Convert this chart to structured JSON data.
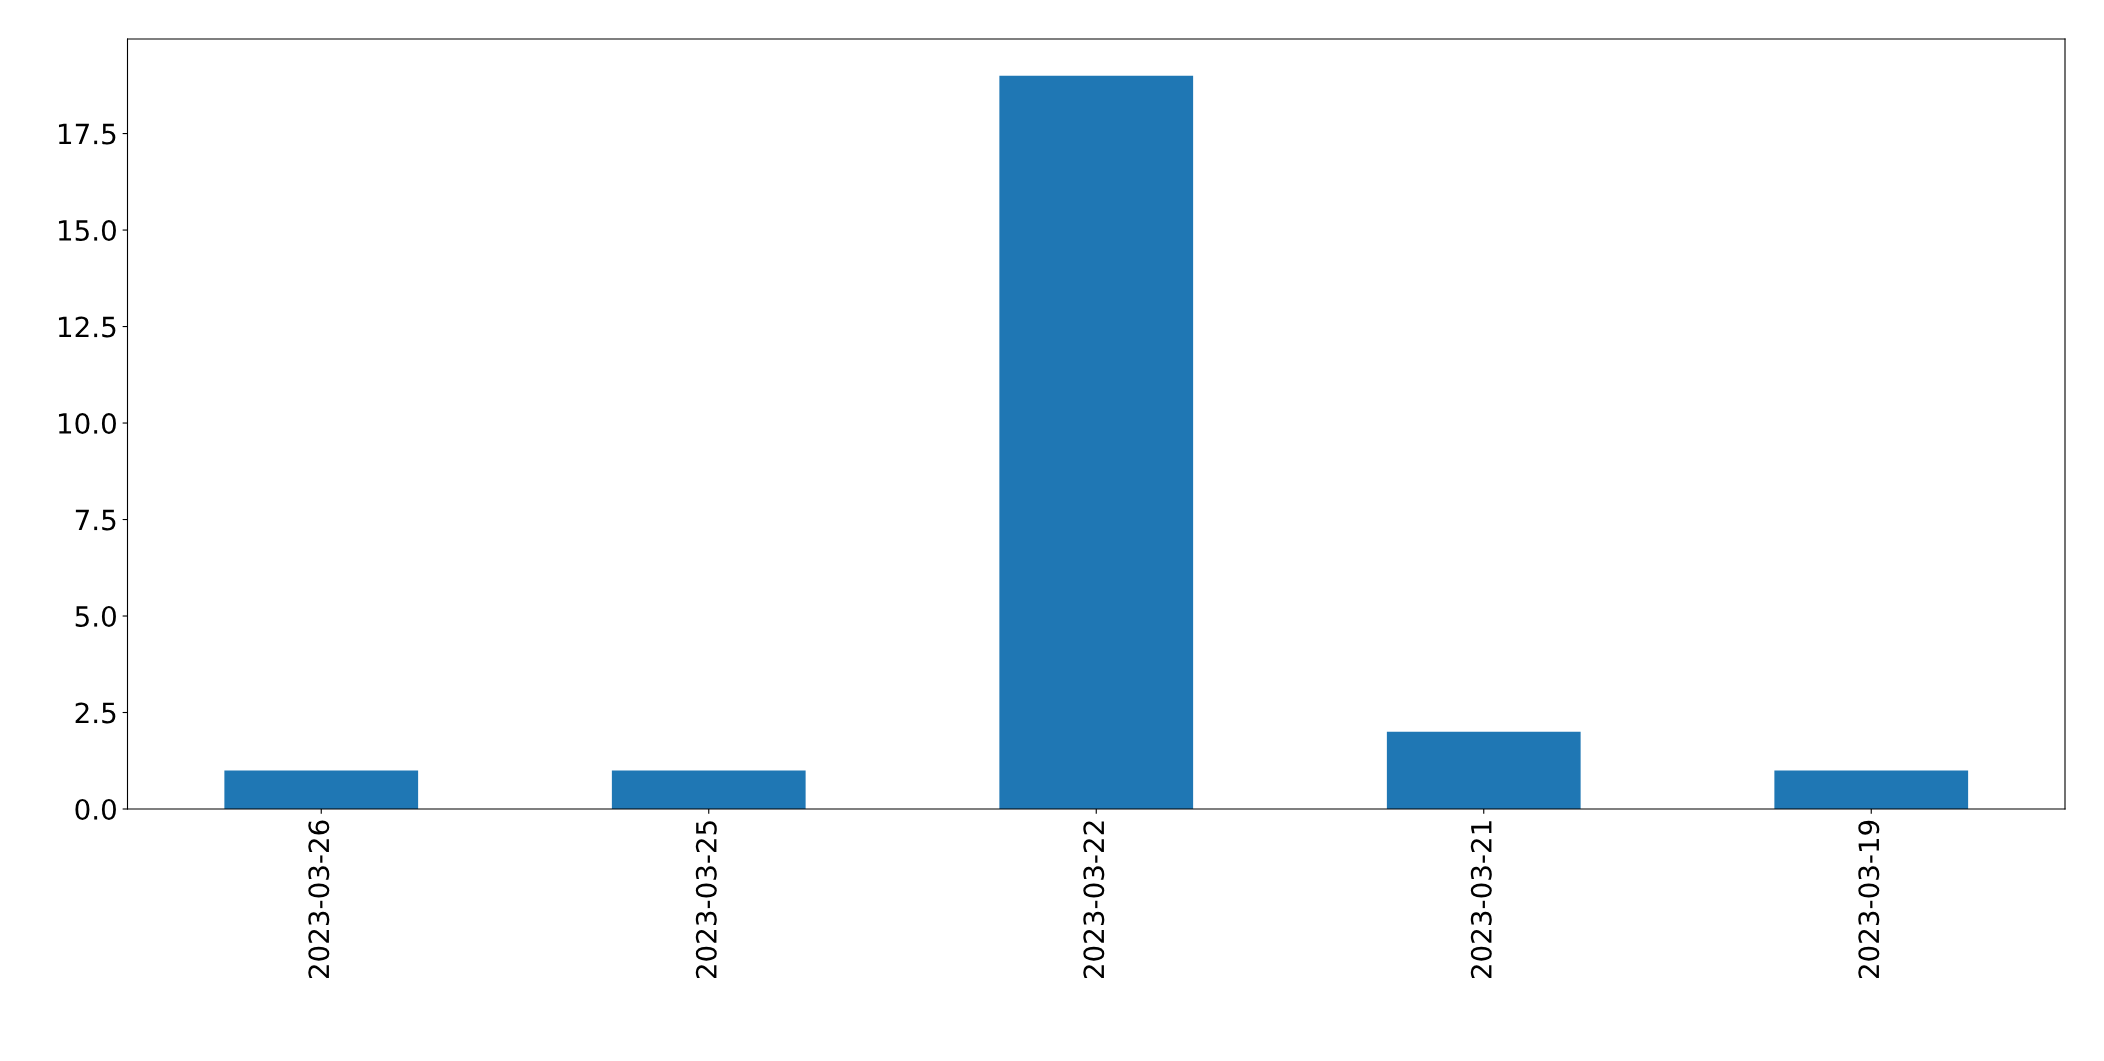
{
  "chart_data": {
    "type": "bar",
    "categories": [
      "2023-03-26",
      "2023-03-25",
      "2023-03-22",
      "2023-03-21",
      "2023-03-19"
    ],
    "values": [
      1,
      1,
      19,
      2,
      1
    ],
    "color": "#1f77b4",
    "ylim": [
      0,
      19.95
    ],
    "yticks": [
      {
        "value": 0,
        "label": "0.0"
      },
      {
        "value": 2.5,
        "label": "2.5"
      },
      {
        "value": 5,
        "label": "5.0"
      },
      {
        "value": 7.5,
        "label": "7.5"
      },
      {
        "value": 10,
        "label": "10.0"
      },
      {
        "value": 12.5,
        "label": "12.5"
      },
      {
        "value": 15,
        "label": "15.0"
      },
      {
        "value": 17.5,
        "label": "17.5"
      }
    ],
    "grid": false,
    "legend": false
  }
}
